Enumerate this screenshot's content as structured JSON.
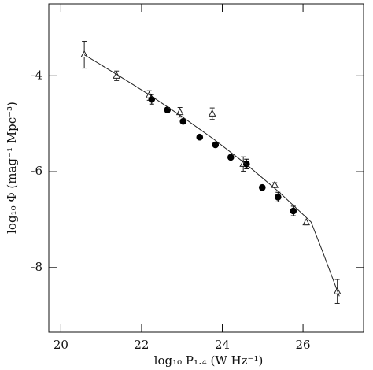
{
  "chart_data": {
    "type": "scatter",
    "xlabel": "log₁₀ P₁.₄ (W Hz⁻¹)",
    "ylabel": "log₁₀ Φ (mag⁻¹ Mpc⁻³)",
    "xlim": [
      19.7,
      27.5
    ],
    "ylim": [
      -9.35,
      -2.5
    ],
    "xticks": [
      20,
      22,
      24,
      26
    ],
    "yticks": [
      -8,
      -6,
      -4
    ],
    "series": [
      {
        "marker": "open-triangle",
        "color": "#222",
        "x": [
          20.58,
          21.38,
          22.19,
          22.95,
          23.75,
          24.52,
          25.3,
          26.08,
          26.85
        ],
        "values": [
          -3.56,
          -4.0,
          -4.41,
          -4.76,
          -4.79,
          -5.84,
          -6.28,
          -7.06,
          -8.5
        ],
        "errors": [
          0.28,
          0.1,
          0.1,
          0.1,
          0.12,
          0.15,
          0.05,
          0.05,
          0.25
        ]
      },
      {
        "marker": "filled-circle",
        "color": "#000",
        "x": [
          22.25,
          22.64,
          23.03,
          23.44,
          23.83,
          24.21,
          24.6,
          24.99,
          25.38,
          25.76
        ],
        "values": [
          -4.49,
          -4.71,
          -4.95,
          -5.28,
          -5.44,
          -5.7,
          -5.84,
          -6.33,
          -6.53,
          -6.82
        ],
        "errors": [
          0.1,
          0.05,
          0.04,
          0.04,
          0.04,
          0.04,
          0.1,
          0.04,
          0.1,
          0.1
        ]
      },
      {
        "marker": "line",
        "color": "#222",
        "x": [
          20.58,
          21.4,
          22.2,
          23.0,
          23.8,
          24.6,
          25.4,
          26.2,
          26.5,
          26.9
        ],
        "values": [
          -3.56,
          -3.98,
          -4.4,
          -4.85,
          -5.33,
          -5.85,
          -6.42,
          -7.05,
          -7.7,
          -8.6
        ]
      }
    ]
  }
}
